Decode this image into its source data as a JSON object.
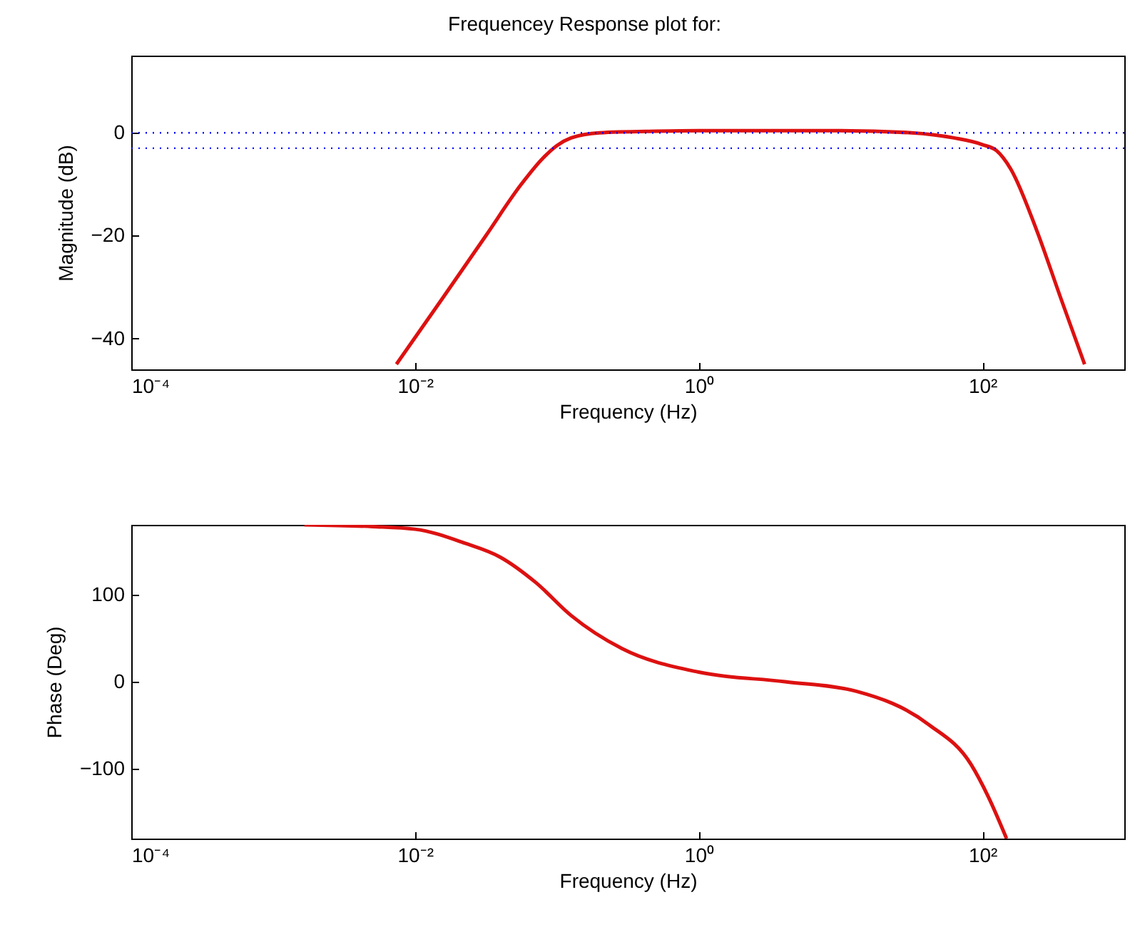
{
  "chart_data": [
    {
      "type": "line",
      "title": "Frequencey Response plot for:",
      "xlabel": "Frequency (Hz)",
      "ylabel": "Magnitude (dB)",
      "x": [
        0.0074,
        0.0158,
        0.0316,
        0.0562,
        0.0794,
        0.1,
        0.126,
        0.2,
        0.5,
        1,
        10,
        31.6,
        63,
        100,
        126,
        158,
        240,
        355,
        525
      ],
      "series": [
        {
          "color": "#dd1111",
          "values": [
            -45,
            -32,
            -20,
            -10,
            -5,
            -2.5,
            -1,
            0,
            0.3,
            0.4,
            0.4,
            0,
            -1,
            -2.3,
            -3.5,
            -7,
            -18.8,
            -32,
            -45
          ]
        }
      ],
      "xlim": [
        0.0001,
        1000
      ],
      "xticks": [
        {
          "value": 0.0001,
          "label": "10⁻⁴"
        },
        {
          "value": 0.01,
          "label": "10⁻²"
        },
        {
          "value": 1,
          "label": "10⁰"
        },
        {
          "value": 100,
          "label": "10²"
        }
      ],
      "ylim": [
        -46,
        15
      ],
      "yticks": [
        -40,
        -20,
        0
      ],
      "log": "x",
      "grid": false,
      "ref_lines": [
        {
          "axis": "y",
          "value": 0,
          "color": "#0000ff",
          "line_style": "dotted"
        },
        {
          "axis": "y",
          "value": -3,
          "color": "#0000ff",
          "line_style": "dotted"
        }
      ]
    },
    {
      "type": "line",
      "xlabel": "Frequency (Hz)",
      "ylabel": "Phase (Deg)",
      "x": [
        0.00166,
        0.005,
        0.01,
        0.0224,
        0.0398,
        0.0708,
        0.126,
        0.288,
        1,
        4.07,
        12.9,
        41.7,
        83.2,
        110,
        148
      ],
      "series": [
        {
          "color": "#dd1111",
          "values": [
            180,
            178,
            175,
            159,
            143,
            114,
            76,
            38,
            11,
            0,
            -11,
            -49,
            -95,
            -132,
            -180
          ]
        }
      ],
      "xlim": [
        0.0001,
        1000
      ],
      "xticks": [
        {
          "value": 0.0001,
          "label": "10⁻⁴"
        },
        {
          "value": 0.01,
          "label": "10⁻²"
        },
        {
          "value": 1,
          "label": "10⁰"
        },
        {
          "value": 100,
          "label": "10²"
        }
      ],
      "ylim": [
        -180,
        180
      ],
      "yticks": [
        -100,
        0,
        100
      ],
      "log": "x",
      "grid": false
    }
  ]
}
